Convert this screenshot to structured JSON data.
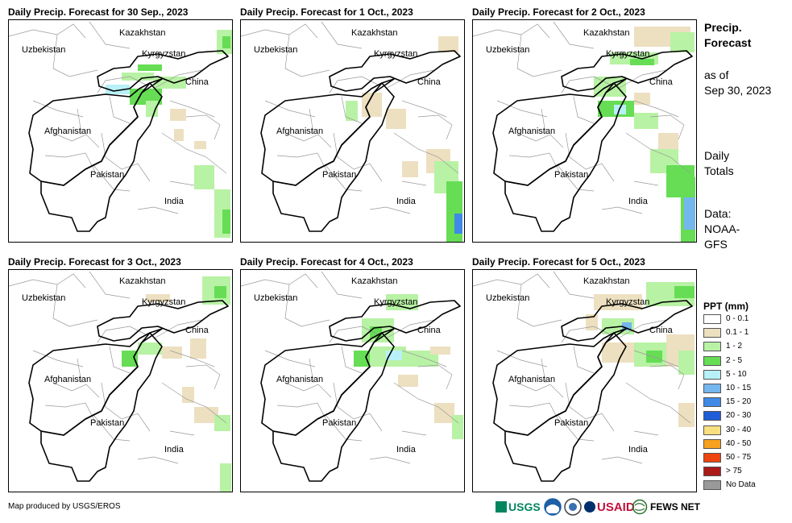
{
  "panels": [
    {
      "title": "Daily Precip. Forecast for 30 Sep., 2023"
    },
    {
      "title": "Daily Precip. Forecast for 1 Oct., 2023"
    },
    {
      "title": "Daily Precip. Forecast for 2 Oct., 2023"
    },
    {
      "title": "Daily Precip. Forecast for 3 Oct., 2023"
    },
    {
      "title": "Daily Precip. Forecast for 4 Oct., 2023"
    },
    {
      "title": "Daily Precip. Forecast for 5 Oct., 2023"
    }
  ],
  "map_labels": {
    "kazakhstan": "Kazakhstan",
    "uzbekistan": "Uzbekistan",
    "kyrgyzstan": "Kyrgyzstan",
    "china": "China",
    "afghanistan": "Afghanistan",
    "pakistan": "Pakistan",
    "india": "India"
  },
  "side": {
    "title_line1": "Precip.",
    "title_line2": "Forecast",
    "asof_line1": "as of",
    "asof_line2": "Sep 30, 2023",
    "totals_line1": "Daily",
    "totals_line2": "Totals",
    "data_line1": "Data:",
    "data_line2": "NOAA-",
    "data_line3": "GFS"
  },
  "legend": {
    "title": "PPT (mm)",
    "items": [
      {
        "label": "0 - 0.1",
        "color": "#ffffff"
      },
      {
        "label": "0.1 - 1",
        "color": "#ede0c0"
      },
      {
        "label": "1 - 2",
        "color": "#b8f2a4"
      },
      {
        "label": "2 - 5",
        "color": "#66dd55"
      },
      {
        "label": "5 - 10",
        "color": "#b8f0f8"
      },
      {
        "label": "10 - 15",
        "color": "#74b6ee"
      },
      {
        "label": "15 - 20",
        "color": "#3e8ae6"
      },
      {
        "label": "20 - 30",
        "color": "#1f5cd8"
      },
      {
        "label": "30 - 40",
        "color": "#f8e080"
      },
      {
        "label": "40 - 50",
        "color": "#f8a020"
      },
      {
        "label": "50 - 75",
        "color": "#ee4410"
      },
      {
        "label": "> 75",
        "color": "#aa1a18"
      },
      {
        "label": "No Data",
        "color": "#999999"
      }
    ]
  },
  "footer": {
    "credit": "Map produced by USGS/EROS",
    "logos": {
      "usgs": "USGS",
      "usaid": "USAID",
      "fewsnet": "FEWS NET"
    }
  }
}
